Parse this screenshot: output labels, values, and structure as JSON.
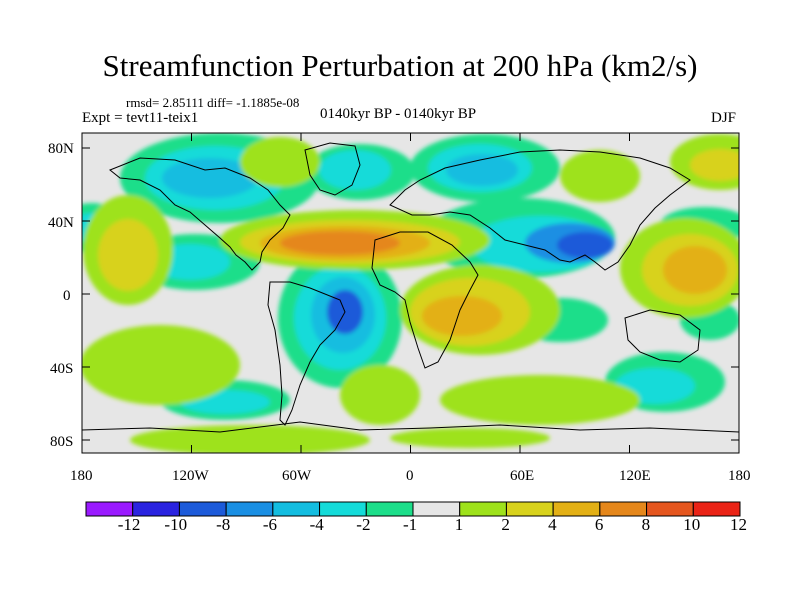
{
  "header": {
    "title": "Streamfunction Perturbation at 200 hPa (km2/s)",
    "stats": "rmsd= 2.85111 diff= -1.1885e-08",
    "experiment": "Expt = tevt11-teix1",
    "period": "0140kyr BP - 0140kyr BP",
    "season": "DJF"
  },
  "axes": {
    "lat_ticks": [
      "80N",
      "40N",
      "0",
      "40S",
      "80S"
    ],
    "lon_ticks": [
      "180",
      "120W",
      "60W",
      "0",
      "60E",
      "120E",
      "180"
    ]
  },
  "colorbar": {
    "labels": [
      "-12",
      "-10",
      "-8",
      "-6",
      "-4",
      "-2",
      "-1",
      "1",
      "2",
      "4",
      "6",
      "8",
      "10",
      "12"
    ],
    "colors": [
      "#9a1aff",
      "#2a23e0",
      "#1c5ad9",
      "#1a8fe3",
      "#13bde0",
      "#14dbd9",
      "#1cde8a",
      "#e6e6e6",
      "#9ee21b",
      "#d8d21c",
      "#e3b015",
      "#e5871b",
      "#e5561e",
      "#ea2316"
    ]
  },
  "colors": {
    "background_field": "#e6e6e6",
    "coastline": "#000000"
  }
}
